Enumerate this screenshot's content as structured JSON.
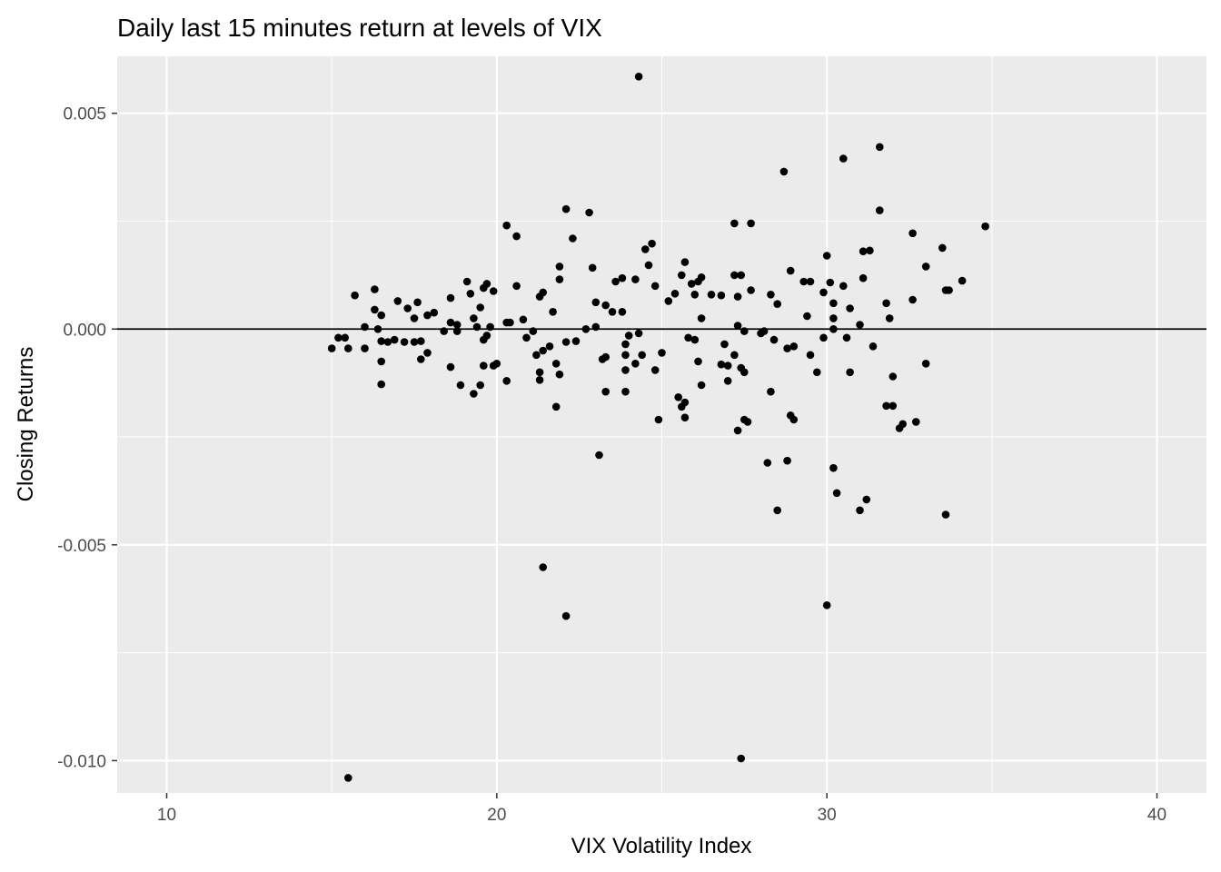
{
  "chart_data": {
    "type": "scatter",
    "title": "Daily last 15 minutes return at levels of VIX",
    "xlabel": "VIX Volatility Index",
    "ylabel": "Closing Returns",
    "xlim": [
      8.5,
      41.5
    ],
    "ylim": [
      -0.01075,
      0.00632
    ],
    "x_ticks": [
      10,
      20,
      30,
      40
    ],
    "x_tick_labels": [
      "10",
      "20",
      "30",
      "40"
    ],
    "y_ticks": [
      0.005,
      0.0,
      -0.005,
      -0.01
    ],
    "y_tick_labels": [
      "0.005",
      "0.000",
      "-0.005",
      "-0.010"
    ],
    "grid": true,
    "hline": 0,
    "colors": {
      "panel": "#ebebeb",
      "grid": "#ffffff",
      "point": "#000000",
      "hline": "#000000"
    },
    "points": [
      [
        24.3,
        0.00585
      ],
      [
        31.6,
        0.00422
      ],
      [
        30.5,
        0.00395
      ],
      [
        28.7,
        0.00365
      ],
      [
        22.1,
        0.00278
      ],
      [
        22.8,
        0.0027
      ],
      [
        31.6,
        0.00275
      ],
      [
        20.3,
        0.0024
      ],
      [
        20.6,
        0.00215
      ],
      [
        22.3,
        0.0021
      ],
      [
        27.2,
        0.00245
      ],
      [
        27.7,
        0.00245
      ],
      [
        34.8,
        0.00238
      ],
      [
        32.6,
        0.00222
      ],
      [
        33.5,
        0.00188
      ],
      [
        24.7,
        0.00198
      ],
      [
        24.5,
        0.00185
      ],
      [
        31.1,
        0.0018
      ],
      [
        31.3,
        0.00182
      ],
      [
        30.0,
        0.0017
      ],
      [
        25.7,
        0.00155
      ],
      [
        24.6,
        0.00148
      ],
      [
        21.9,
        0.00145
      ],
      [
        22.9,
        0.00142
      ],
      [
        33.0,
        0.00145
      ],
      [
        31.1,
        0.00118
      ],
      [
        28.9,
        0.00135
      ],
      [
        25.6,
        0.00125
      ],
      [
        26.2,
        0.0012
      ],
      [
        27.2,
        0.00125
      ],
      [
        27.4,
        0.00125
      ],
      [
        24.2,
        0.00115
      ],
      [
        23.8,
        0.00118
      ],
      [
        23.6,
        0.0011
      ],
      [
        21.9,
        0.00115
      ],
      [
        19.1,
        0.0011
      ],
      [
        19.7,
        0.00105
      ],
      [
        20.6,
        0.001
      ],
      [
        24.8,
        0.001
      ],
      [
        25.9,
        0.00105
      ],
      [
        26.1,
        0.0011
      ],
      [
        27.7,
        0.0009
      ],
      [
        29.3,
        0.0011
      ],
      [
        29.5,
        0.0011
      ],
      [
        30.1,
        0.00108
      ],
      [
        30.5,
        0.001
      ],
      [
        33.6,
        0.0009
      ],
      [
        33.7,
        0.0009
      ],
      [
        34.1,
        0.00112
      ],
      [
        16.3,
        0.00092
      ],
      [
        15.7,
        0.00078
      ],
      [
        18.6,
        0.00072
      ],
      [
        19.2,
        0.00082
      ],
      [
        19.6,
        0.00095
      ],
      [
        19.9,
        0.00088
      ],
      [
        21.4,
        0.00085
      ],
      [
        21.3,
        0.00075
      ],
      [
        25.4,
        0.00082
      ],
      [
        26.0,
        0.0008
      ],
      [
        26.5,
        0.0008
      ],
      [
        26.8,
        0.00078
      ],
      [
        27.3,
        0.00075
      ],
      [
        28.3,
        0.0008
      ],
      [
        29.9,
        0.00085
      ],
      [
        32.6,
        0.00068
      ],
      [
        17.0,
        0.00065
      ],
      [
        17.6,
        0.00062
      ],
      [
        23.0,
        0.00062
      ],
      [
        25.2,
        0.00065
      ],
      [
        31.8,
        0.0006
      ],
      [
        16.3,
        0.00045
      ],
      [
        17.3,
        0.00048
      ],
      [
        17.9,
        0.00032
      ],
      [
        18.1,
        0.00038
      ],
      [
        19.5,
        0.0005
      ],
      [
        21.7,
        0.0004
      ],
      [
        23.3,
        0.00055
      ],
      [
        23.8,
        0.0004
      ],
      [
        23.5,
        0.0004
      ],
      [
        28.5,
        0.00058
      ],
      [
        30.2,
        0.0006
      ],
      [
        30.7,
        0.00048
      ],
      [
        16.5,
        0.00032
      ],
      [
        17.5,
        0.00025
      ],
      [
        19.3,
        0.00025
      ],
      [
        20.8,
        0.00022
      ],
      [
        20.3,
        0.00015
      ],
      [
        20.4,
        0.00015
      ],
      [
        26.2,
        0.00025
      ],
      [
        29.4,
        0.0003
      ],
      [
        30.2,
        0.00025
      ],
      [
        31.9,
        0.00025
      ],
      [
        18.6,
        0.00015
      ],
      [
        18.8,
        0.0001
      ],
      [
        19.4,
        5e-05
      ],
      [
        22.7,
        0.0
      ],
      [
        23.0,
        5e-05
      ],
      [
        27.3,
        8e-05
      ],
      [
        30.2,
        0.0
      ],
      [
        31.0,
        0.0001
      ],
      [
        16.0,
        5e-05
      ],
      [
        16.4,
        0.0
      ],
      [
        18.4,
        -5e-05
      ],
      [
        18.8,
        -5e-05
      ],
      [
        19.8,
        5e-05
      ],
      [
        21.1,
        -5e-05
      ],
      [
        24.0,
        -0.00015
      ],
      [
        24.3,
        -0.0001
      ],
      [
        27.5,
        -5e-05
      ],
      [
        28.0,
        -0.0001
      ],
      [
        29.9,
        -0.0002
      ],
      [
        15.0,
        -0.00045
      ],
      [
        15.2,
        -0.0002
      ],
      [
        15.4,
        -0.0002
      ],
      [
        15.5,
        -0.00045
      ],
      [
        16.0,
        -0.00045
      ],
      [
        16.5,
        -0.00028
      ],
      [
        16.7,
        -0.0003
      ],
      [
        16.9,
        -0.00025
      ],
      [
        17.2,
        -0.0003
      ],
      [
        17.5,
        -0.0003
      ],
      [
        17.7,
        -0.00028
      ],
      [
        19.6,
        -0.00025
      ],
      [
        19.7,
        -0.00015
      ],
      [
        20.9,
        -0.0002
      ],
      [
        21.6,
        -0.0004
      ],
      [
        22.1,
        -0.0003
      ],
      [
        23.9,
        -0.00035
      ],
      [
        26.0,
        -0.00025
      ],
      [
        26.9,
        -0.00035
      ],
      [
        28.4,
        -0.00025
      ],
      [
        28.8,
        -0.00045
      ],
      [
        29.0,
        -0.0004
      ],
      [
        30.6,
        -0.0002
      ],
      [
        31.4,
        -0.0004
      ],
      [
        17.9,
        -0.00055
      ],
      [
        17.7,
        -0.0007
      ],
      [
        21.4,
        -0.0005
      ],
      [
        21.2,
        -0.0006
      ],
      [
        25.0,
        -0.00055
      ],
      [
        24.4,
        -0.0006
      ],
      [
        23.9,
        -0.0006
      ],
      [
        26.8,
        -0.00082
      ],
      [
        27.0,
        -0.00085
      ],
      [
        27.2,
        -0.0006
      ],
      [
        29.5,
        -0.0006
      ],
      [
        15.5,
        -0.0104
      ],
      [
        16.5,
        -0.00075
      ],
      [
        18.6,
        -0.00088
      ],
      [
        19.6,
        -0.00085
      ],
      [
        19.9,
        -0.00085
      ],
      [
        21.8,
        -0.0008
      ],
      [
        24.8,
        -0.00095
      ],
      [
        26.1,
        -0.00075
      ],
      [
        27.4,
        -0.0009
      ],
      [
        29.7,
        -0.001
      ],
      [
        30.7,
        -0.001
      ],
      [
        33.0,
        -0.0008
      ],
      [
        21.3,
        -0.001
      ],
      [
        21.9,
        -0.00105
      ],
      [
        21.3,
        -0.00118
      ],
      [
        23.3,
        -0.00065
      ],
      [
        23.9,
        -0.00095
      ],
      [
        24.2,
        -0.0008
      ],
      [
        27.5,
        -0.001
      ],
      [
        27.0,
        -0.0012
      ],
      [
        26.2,
        -0.0013
      ],
      [
        32.0,
        -0.0011
      ],
      [
        16.5,
        -0.00128
      ],
      [
        18.9,
        -0.0013
      ],
      [
        19.3,
        -0.0015
      ],
      [
        19.5,
        -0.0013
      ],
      [
        20.3,
        -0.0012
      ],
      [
        23.3,
        -0.00145
      ],
      [
        23.9,
        -0.00145
      ],
      [
        28.3,
        -0.00145
      ],
      [
        25.5,
        -0.00158
      ],
      [
        25.7,
        -0.0017
      ],
      [
        25.6,
        -0.0018
      ],
      [
        31.8,
        -0.00178
      ],
      [
        32.0,
        -0.00178
      ],
      [
        21.8,
        -0.0018
      ],
      [
        24.9,
        -0.0021
      ],
      [
        25.7,
        -0.00205
      ],
      [
        28.9,
        -0.002
      ],
      [
        29.0,
        -0.0021
      ],
      [
        27.5,
        -0.0021
      ],
      [
        27.6,
        -0.00215
      ],
      [
        32.7,
        -0.00215
      ],
      [
        32.3,
        -0.0022
      ],
      [
        32.2,
        -0.0023
      ],
      [
        27.3,
        -0.00235
      ],
      [
        23.1,
        -0.00292
      ],
      [
        28.8,
        -0.00305
      ],
      [
        28.2,
        -0.0031
      ],
      [
        30.2,
        -0.00322
      ],
      [
        30.3,
        -0.0038
      ],
      [
        31.2,
        -0.00395
      ],
      [
        31.0,
        -0.0042
      ],
      [
        28.5,
        -0.0042
      ],
      [
        33.6,
        -0.0043
      ],
      [
        21.4,
        -0.00552
      ],
      [
        22.1,
        -0.00665
      ],
      [
        30.0,
        -0.0064
      ],
      [
        27.4,
        -0.00995
      ],
      [
        20.0,
        -0.0008
      ],
      [
        22.4,
        -0.00028
      ],
      [
        23.2,
        -0.0007
      ],
      [
        25.8,
        -0.0002
      ],
      [
        28.1,
        -5e-05
      ]
    ]
  }
}
